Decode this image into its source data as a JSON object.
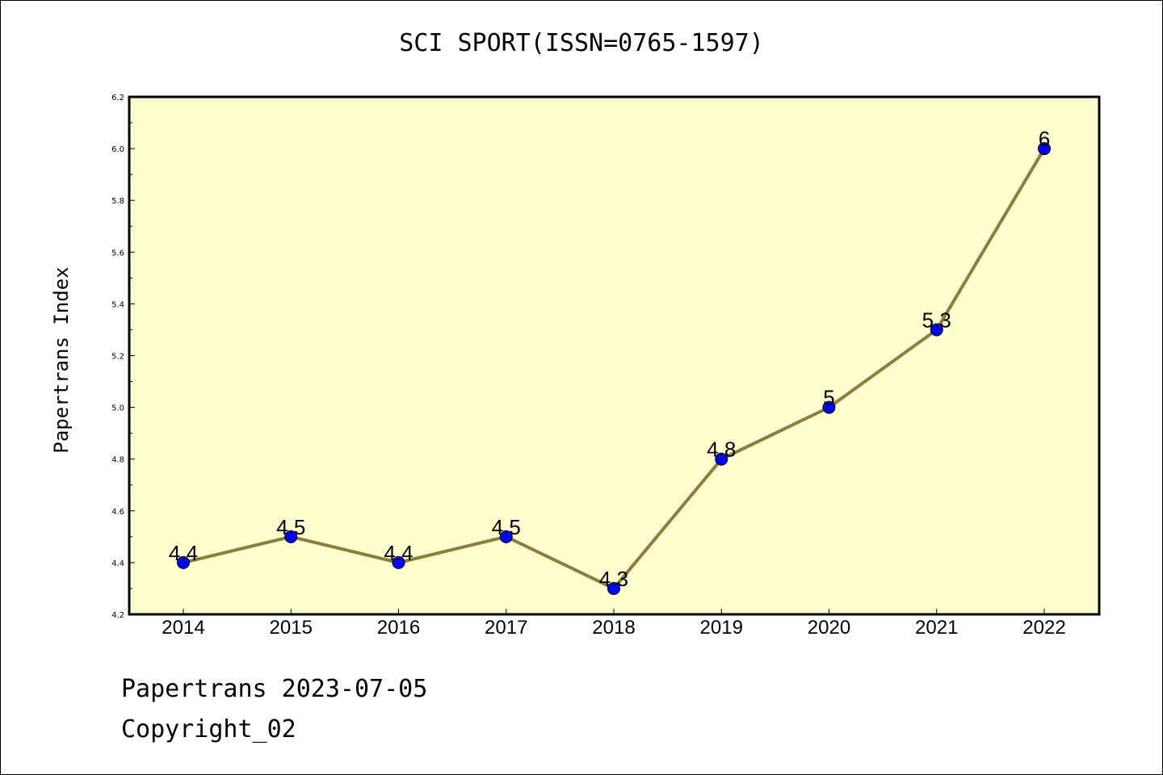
{
  "chart_data": {
    "type": "line",
    "title": "SCI SPORT(ISSN=0765-1597)",
    "xlabel": "",
    "ylabel": "Papertrans Index",
    "categories": [
      "2014",
      "2015",
      "2016",
      "2017",
      "2018",
      "2019",
      "2020",
      "2021",
      "2022"
    ],
    "values": [
      4.4,
      4.5,
      4.4,
      4.5,
      4.3,
      4.8,
      5.0,
      5.3,
      6.0
    ],
    "data_labels": [
      "4.4",
      "4.5",
      "4.4",
      "4.5",
      "4.3",
      "4.8",
      "5",
      "5.3",
      "6"
    ],
    "ylim": [
      4.2,
      6.2
    ],
    "y_ticks": [
      "4.2",
      "4.4",
      "4.6",
      "4.8",
      "5.0",
      "5.2",
      "5.4",
      "5.6",
      "5.8",
      "6.0",
      "6.2"
    ],
    "grid": false,
    "legend": "none",
    "colors": {
      "plot_background": "#ffffd0",
      "line": "#8b7d3a",
      "marker": "#0000ff"
    }
  },
  "footer": {
    "line1": "Papertrans 2023-07-05",
    "line2": "Copyright_02"
  }
}
